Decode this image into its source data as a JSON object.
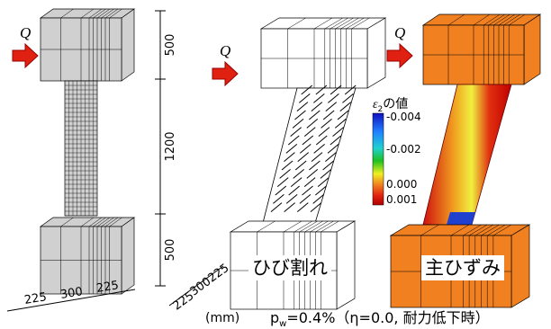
{
  "load_label": "Q",
  "dimensions": {
    "height": [
      "500",
      "1200",
      "500"
    ],
    "width": [
      "225",
      "300",
      "225"
    ],
    "depth": [
      "225",
      "300",
      "225"
    ],
    "unit": "(mm)"
  },
  "panel_labels": [
    "ひび割れ",
    "主ひずみ"
  ],
  "legend": {
    "symbol": "ε",
    "subscript": "2",
    "text": "の値",
    "ticks": [
      "-0.004",
      "-0.002",
      "0.000",
      "0.001"
    ]
  },
  "caption": {
    "symbol": "p",
    "subscript": "w",
    "text": "=0.4%（η=0.0, 耐力低下時）"
  }
}
